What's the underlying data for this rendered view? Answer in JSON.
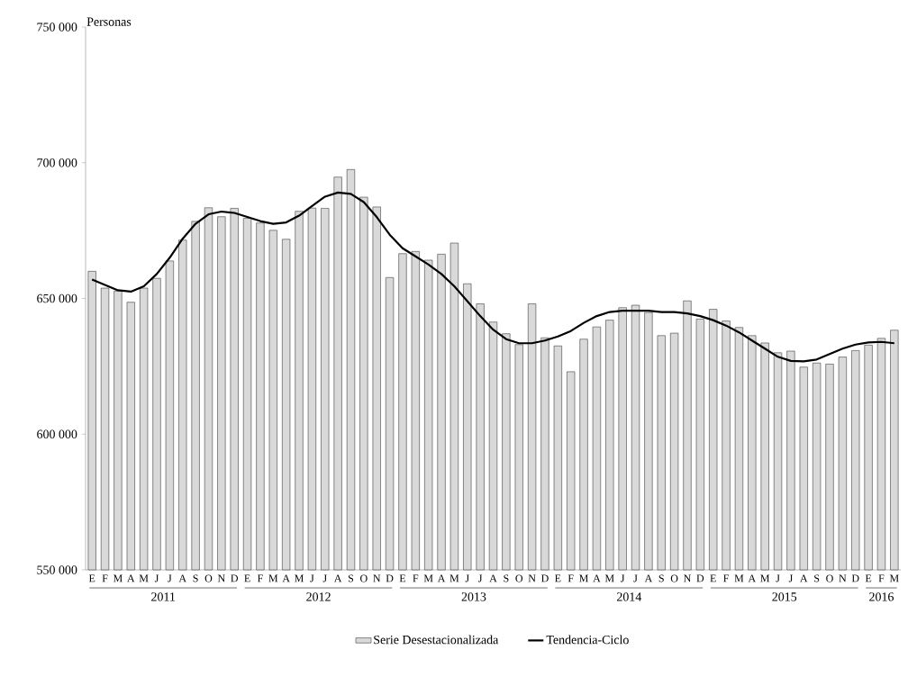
{
  "chart_data": {
    "type": "bar",
    "ylabel": "Personas",
    "categories": [
      "E",
      "F",
      "M",
      "A",
      "M",
      "J",
      "J",
      "A",
      "S",
      "O",
      "N",
      "D",
      "E",
      "F",
      "M",
      "A",
      "M",
      "J",
      "J",
      "A",
      "S",
      "O",
      "N",
      "D",
      "E",
      "F",
      "M",
      "A",
      "M",
      "J",
      "J",
      "A",
      "S",
      "O",
      "N",
      "D",
      "E",
      "F",
      "M",
      "A",
      "M",
      "J",
      "J",
      "A",
      "S",
      "O",
      "N",
      "D",
      "E",
      "F",
      "M",
      "A",
      "M",
      "J",
      "J",
      "A",
      "S",
      "O",
      "N",
      "D",
      "E",
      "F",
      "M"
    ],
    "series": [
      {
        "name": "Serie Desestacionalizada",
        "color": "#d9d9d9",
        "values": [
          660000,
          653800,
          652700,
          648600,
          653800,
          657400,
          663800,
          671500,
          678400,
          683400,
          680100,
          683200,
          679500,
          677800,
          675100,
          671800,
          682100,
          683300,
          683200,
          694700,
          697500,
          687300,
          683700,
          657700,
          666500,
          667300,
          664100,
          666300,
          670400,
          655400,
          648000,
          641300,
          637000,
          633000,
          648000,
          635500,
          632500,
          623000,
          635000,
          639500,
          642000,
          646600,
          647500,
          644800,
          636300,
          637200,
          649100,
          642400,
          646000,
          641700,
          639300,
          636300,
          633600,
          630000,
          630600,
          624700,
          626200,
          625800,
          628400,
          630800,
          632800,
          635300,
          638300
        ]
      },
      {
        "name": "Tendencia-Ciclo",
        "type": "line",
        "color": "#000000",
        "values": [
          657000,
          655000,
          653000,
          652500,
          654500,
          659000,
          665000,
          672000,
          677500,
          681000,
          682000,
          681500,
          680000,
          678500,
          677500,
          678000,
          680500,
          684000,
          687500,
          689000,
          688500,
          685500,
          680000,
          673500,
          668500,
          665500,
          662500,
          659000,
          654500,
          649000,
          643500,
          638500,
          635000,
          633500,
          633500,
          634500,
          636000,
          638000,
          641000,
          643500,
          645000,
          645500,
          645500,
          645500,
          645000,
          645000,
          644500,
          643500,
          642000,
          640000,
          637500,
          634500,
          631500,
          628500,
          627000,
          626800,
          627500,
          629500,
          631500,
          633000,
          633800,
          634000,
          633500
        ]
      }
    ],
    "ylim": [
      550000,
      750000
    ],
    "yticks": [
      {
        "value": 550000,
        "label": "550 000"
      },
      {
        "value": 600000,
        "label": "600 000"
      },
      {
        "value": 650000,
        "label": "650 000"
      },
      {
        "value": 700000,
        "label": "700 000"
      },
      {
        "value": 750000,
        "label": "750 000"
      }
    ],
    "annotations": [
      "2011",
      "2012",
      "2013",
      "2014",
      "2015",
      "2016"
    ],
    "legend": "bottom",
    "grid": false,
    "marker": "none",
    "line_style": "solid"
  }
}
